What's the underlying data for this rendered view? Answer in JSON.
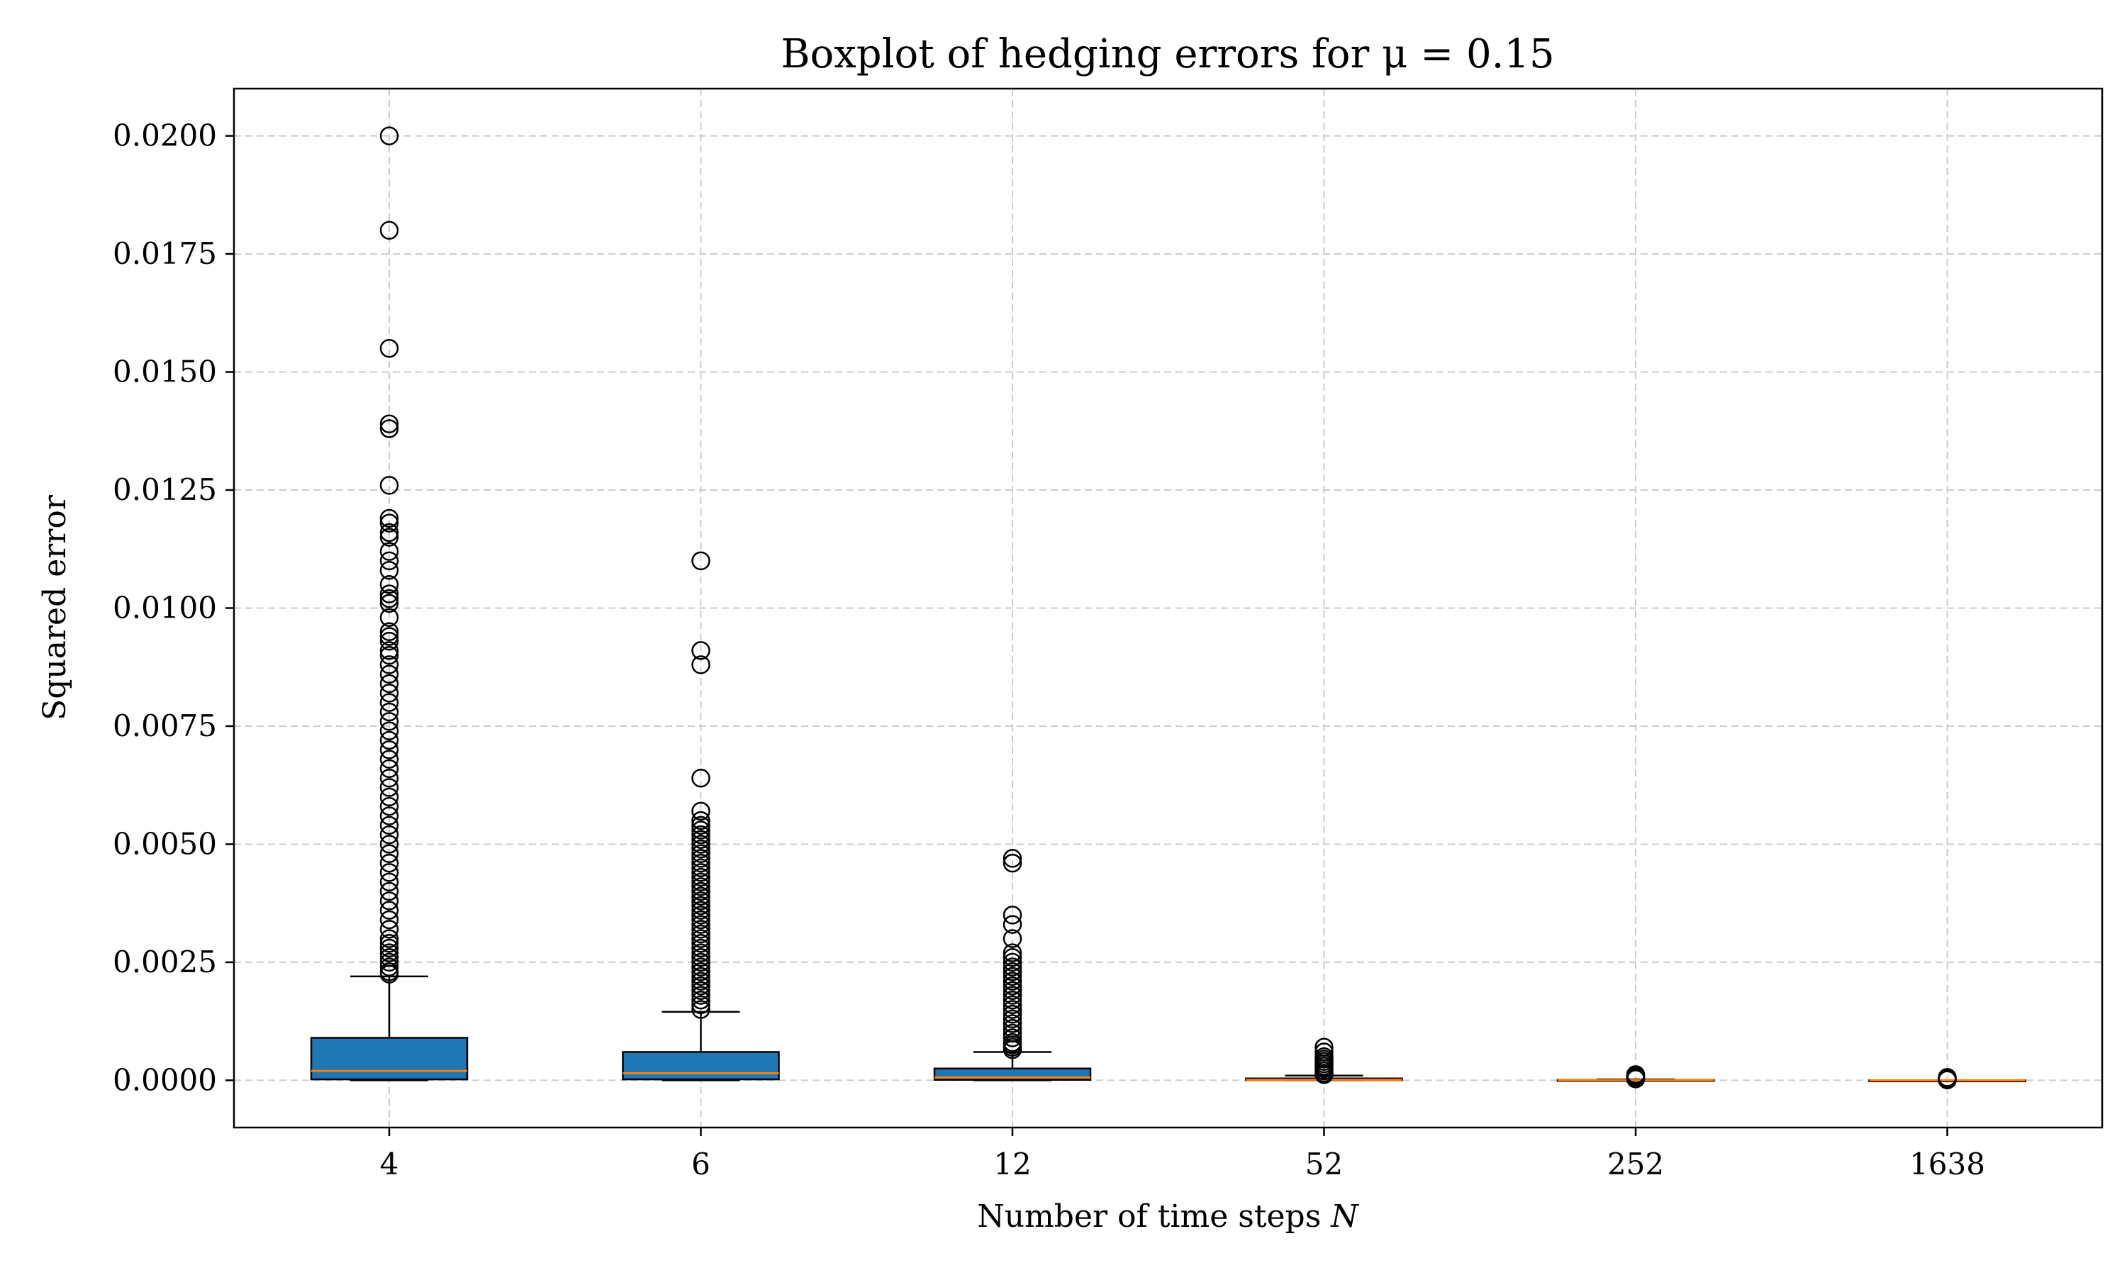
{
  "chart_data": {
    "type": "boxplot",
    "title": "Boxplot of hedging errors for μ = 0.15",
    "xlabel_text": "Number of time steps ",
    "xlabel_var": "N",
    "ylabel": "Squared error",
    "categories": [
      "4",
      "6",
      "12",
      "52",
      "252",
      "1638"
    ],
    "ylim": [
      -0.001,
      0.021
    ],
    "yticks": [
      0.0,
      0.0025,
      0.005,
      0.0075,
      0.01,
      0.0125,
      0.015,
      0.0175,
      0.02
    ],
    "ytick_labels": [
      "0.0000",
      "0.0025",
      "0.0050",
      "0.0075",
      "0.0100",
      "0.0125",
      "0.0150",
      "0.0175",
      "0.0200"
    ],
    "grid": true,
    "colors": {
      "box_fill": "#1f77b4",
      "median": "#ff7f0e",
      "grid": "#cccccc",
      "flier_edge": "#000000"
    },
    "boxes": [
      {
        "category": "4",
        "whislo": 0.0,
        "q1": 2e-05,
        "median": 0.0002,
        "q3": 0.0009,
        "whishi": 0.0022,
        "fliers": [
          0.02,
          0.018,
          0.0155,
          0.0139,
          0.0138,
          0.0126,
          0.0119,
          0.0118,
          0.0116,
          0.0115,
          0.0112,
          0.011,
          0.0108,
          0.0105,
          0.0103,
          0.0102,
          0.0101,
          0.0098,
          0.0095,
          0.0094,
          0.0093,
          0.0091,
          0.009,
          0.0088,
          0.0086,
          0.0084,
          0.0082,
          0.008,
          0.0078,
          0.0076,
          0.0074,
          0.0072,
          0.007,
          0.0068,
          0.0066,
          0.0064,
          0.0062,
          0.006,
          0.0058,
          0.0056,
          0.0054,
          0.0052,
          0.005,
          0.0048,
          0.0046,
          0.0044,
          0.0042,
          0.004,
          0.0038,
          0.0036,
          0.0034,
          0.0032,
          0.003,
          0.0029,
          0.0028,
          0.0027,
          0.0026,
          0.0025,
          0.0024,
          0.0023,
          0.00225
        ]
      },
      {
        "category": "6",
        "whislo": 0.0,
        "q1": 2e-05,
        "median": 0.00015,
        "q3": 0.0006,
        "whishi": 0.00145,
        "fliers": [
          0.011,
          0.0091,
          0.0088,
          0.0064,
          0.0057,
          0.0055,
          0.0054,
          0.0053,
          0.0052,
          0.0051,
          0.005,
          0.0049,
          0.0048,
          0.0047,
          0.0046,
          0.0045,
          0.0044,
          0.0043,
          0.0042,
          0.0041,
          0.004,
          0.0039,
          0.0038,
          0.0037,
          0.0036,
          0.0035,
          0.0034,
          0.0033,
          0.0032,
          0.0031,
          0.003,
          0.0029,
          0.0028,
          0.0027,
          0.0026,
          0.0025,
          0.0024,
          0.0023,
          0.0022,
          0.0021,
          0.002,
          0.0019,
          0.0018,
          0.0017,
          0.0016,
          0.0015
        ]
      },
      {
        "category": "12",
        "whislo": 0.0,
        "q1": 1e-05,
        "median": 6e-05,
        "q3": 0.00025,
        "whishi": 0.0006,
        "fliers": [
          0.0047,
          0.0046,
          0.0035,
          0.0033,
          0.003,
          0.0027,
          0.0026,
          0.0025,
          0.0024,
          0.0023,
          0.0022,
          0.0021,
          0.002,
          0.0019,
          0.0018,
          0.0017,
          0.0016,
          0.0015,
          0.0014,
          0.0013,
          0.0012,
          0.0011,
          0.001,
          0.0009,
          0.0008,
          0.00075,
          0.0007,
          0.00065
        ]
      },
      {
        "category": "52",
        "whislo": 0.0,
        "q1": 2e-06,
        "median": 1e-05,
        "q3": 4e-05,
        "whishi": 0.0001,
        "fliers": [
          0.0007,
          0.0006,
          0.0005,
          0.00045,
          0.0004,
          0.00035,
          0.0003,
          0.00025,
          0.0002,
          0.00015,
          0.00012
        ]
      },
      {
        "category": "252",
        "whislo": 0.0,
        "q1": 1e-06,
        "median": 2e-06,
        "q3": 8e-06,
        "whishi": 2e-05,
        "fliers": [
          0.00012,
          0.0001,
          8e-05,
          6e-05,
          4e-05,
          3e-05
        ]
      },
      {
        "category": "1638",
        "whislo": 0.0,
        "q1": 0.0,
        "median": 5e-07,
        "q3": 1e-06,
        "whishi": 3e-06,
        "fliers": [
          6e-05,
          4e-05,
          2e-05,
          1e-05
        ]
      }
    ]
  }
}
